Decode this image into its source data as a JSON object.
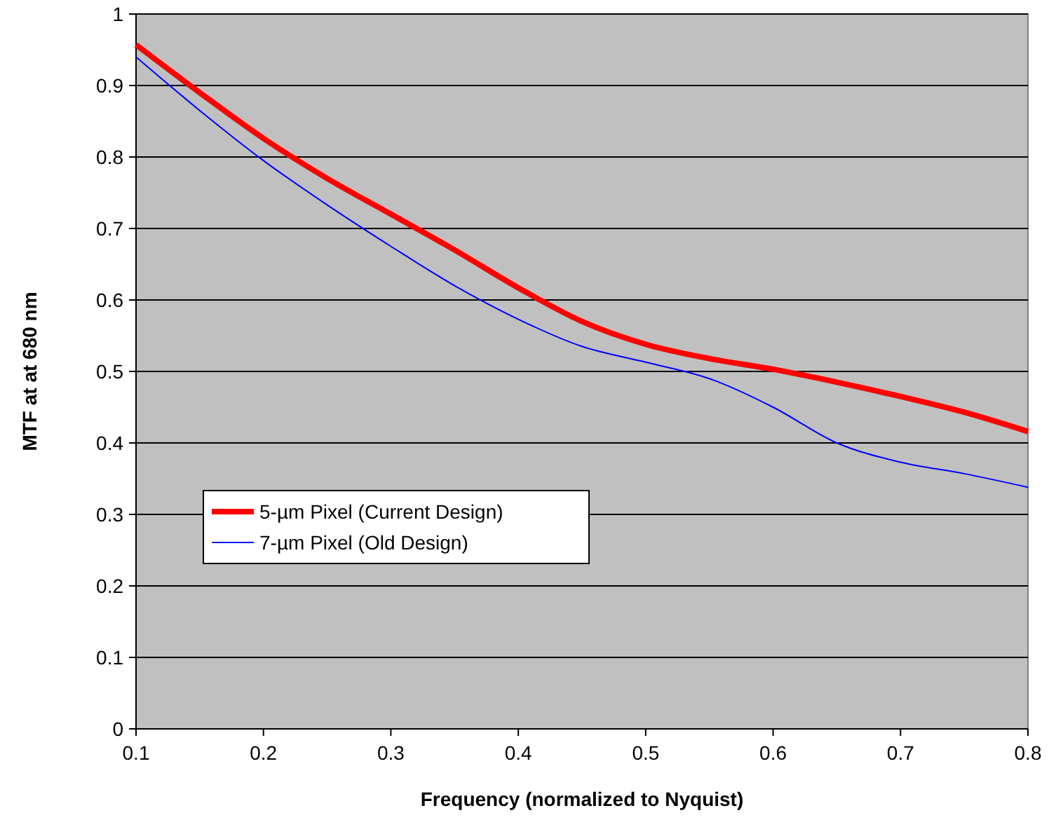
{
  "chart_data": {
    "type": "line",
    "xlabel": "Frequency (normalized to Nyquist)",
    "ylabel": "MTF at at 680 nm",
    "x": [
      0.1,
      0.15,
      0.2,
      0.25,
      0.3,
      0.35,
      0.4,
      0.45,
      0.5,
      0.55,
      0.6,
      0.65,
      0.7,
      0.75,
      0.8
    ],
    "series": [
      {
        "name": "5-µm Pixel (Current Design)",
        "color": "#ff0000",
        "values": [
          0.957,
          0.89,
          0.826,
          0.77,
          0.72,
          0.67,
          0.617,
          0.57,
          0.538,
          0.518,
          0.503,
          0.485,
          0.465,
          0.443,
          0.416
        ]
      },
      {
        "name": "7-µm Pixel (Old Design)",
        "color": "#0000ff",
        "values": [
          0.94,
          0.865,
          0.795,
          0.733,
          0.675,
          0.62,
          0.573,
          0.535,
          0.513,
          0.49,
          0.45,
          0.4,
          0.373,
          0.357,
          0.338
        ]
      }
    ],
    "xlim": [
      0.1,
      0.8
    ],
    "xticks": [
      0.1,
      0.2,
      0.3,
      0.4,
      0.5,
      0.6,
      0.7,
      0.8
    ],
    "ylim": [
      0,
      1
    ],
    "yticks": [
      0,
      0.1,
      0.2,
      0.3,
      0.4,
      0.5,
      0.6,
      0.7,
      0.8,
      0.9,
      1
    ],
    "grid": "y",
    "legend": "left",
    "marker": "none",
    "line_style": "solid"
  }
}
